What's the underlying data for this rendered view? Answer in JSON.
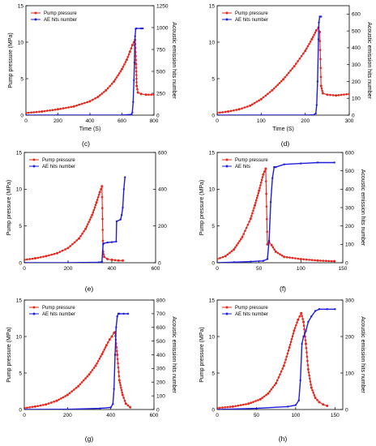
{
  "figure": {
    "colors": {
      "pressure": "#e8261c",
      "ae": "#1d1ddd",
      "axis": "#000000"
    }
  },
  "chart_data": [
    {
      "type": "line",
      "panel_label": "(c)",
      "xlabel": "Time (S)",
      "ylabel_left": "Pump pressure (MPa)",
      "ylabel_right": "Acoustic emission hits number",
      "xlim": [
        0,
        800
      ],
      "ylim_left": [
        0,
        15
      ],
      "ylim_right": [
        0,
        1250
      ],
      "x_ticks": [
        0,
        200,
        400,
        600,
        800
      ],
      "y_ticks_left": [
        0,
        5,
        10,
        15
      ],
      "y_ticks_right": [
        0,
        250,
        500,
        750,
        1000,
        1250
      ],
      "legend": {
        "position": "top-left",
        "entries": [
          "Pump pressure",
          "AE hits number"
        ]
      },
      "series": [
        {
          "name": "Pump pressure",
          "axis": "left",
          "color": "#e8261c",
          "marker": "dot",
          "x": [
            0,
            100,
            200,
            300,
            400,
            450,
            500,
            550,
            600,
            630,
            650,
            665,
            675,
            682,
            688,
            692,
            700,
            720,
            750,
            800
          ],
          "y": [
            0.3,
            0.5,
            0.8,
            1.2,
            1.9,
            2.5,
            3.4,
            4.6,
            6.3,
            7.6,
            8.7,
            9.6,
            10.0,
            10.3,
            7.0,
            4.0,
            3.1,
            2.9,
            2.8,
            2.8
          ]
        },
        {
          "name": "AE hits number",
          "axis": "right",
          "color": "#1d1ddd",
          "marker": "dot",
          "x": [
            0,
            200,
            400,
            600,
            660,
            665,
            670,
            675,
            678,
            680,
            682,
            686,
            690,
            720,
            730
          ],
          "y": [
            0,
            0,
            0,
            0,
            8,
            30,
            150,
            400,
            600,
            800,
            900,
            985,
            990,
            990,
            990
          ]
        }
      ]
    },
    {
      "type": "line",
      "panel_label": "(d)",
      "xlabel": "Time (S)",
      "ylabel_left": "",
      "ylabel_right": "Acoustic emission hits number",
      "xlim": [
        0,
        300
      ],
      "ylim_left": [
        0,
        15
      ],
      "ylim_right": [
        0,
        650
      ],
      "x_ticks": [
        0,
        100,
        200,
        300
      ],
      "y_ticks_left": [
        0,
        5,
        10,
        15
      ],
      "y_ticks_right": [
        0,
        100,
        200,
        300,
        400,
        500,
        600
      ],
      "legend": {
        "position": "top-left",
        "entries": [
          "Pump pressure",
          "AE hits number"
        ]
      },
      "series": [
        {
          "name": "Pump pressure",
          "axis": "left",
          "color": "#e8261c",
          "marker": "dot",
          "x": [
            0,
            25,
            50,
            75,
            100,
            125,
            150,
            175,
            200,
            215,
            225,
            230,
            233,
            236,
            240,
            250,
            270,
            300
          ],
          "y": [
            0.3,
            0.5,
            0.8,
            1.3,
            2.2,
            3.4,
            4.9,
            6.7,
            8.8,
            10.4,
            11.6,
            12.0,
            11.4,
            4.0,
            3.0,
            2.8,
            2.7,
            2.9
          ]
        },
        {
          "name": "AE hits number",
          "axis": "right",
          "color": "#1d1ddd",
          "marker": "dot",
          "x": [
            0,
            100,
            200,
            220,
            224,
            226,
            228,
            230,
            231,
            233,
            236
          ],
          "y": [
            0,
            0,
            0,
            2,
            10,
            60,
            200,
            450,
            550,
            585,
            585
          ]
        }
      ]
    },
    {
      "type": "line",
      "panel_label": "(e)",
      "xlabel": "",
      "ylabel_left": "Pump pressure (MPa)",
      "ylabel_right": "",
      "xlim": [
        0,
        600
      ],
      "ylim_left": [
        0,
        15
      ],
      "ylim_right": [
        0,
        600
      ],
      "x_ticks": [
        0,
        200,
        400,
        600
      ],
      "y_ticks_left": [
        0,
        5,
        10,
        15
      ],
      "y_ticks_right": [
        0,
        200,
        400,
        600
      ],
      "legend": {
        "position": "top-left",
        "entries": [
          "Pump pressure",
          "AE hits number"
        ]
      },
      "series": [
        {
          "name": "Pump pressure",
          "axis": "left",
          "color": "#e8261c",
          "marker": "dot",
          "x": [
            0,
            50,
            100,
            150,
            200,
            250,
            280,
            310,
            330,
            345,
            355,
            360,
            365,
            380,
            400,
            430,
            450
          ],
          "y": [
            0.4,
            0.6,
            0.9,
            1.3,
            2.0,
            3.3,
            4.6,
            6.5,
            8.2,
            9.6,
            10.4,
            1.5,
            0.8,
            0.5,
            0.4,
            0.3,
            0.3
          ]
        },
        {
          "name": "AE hits number",
          "axis": "right",
          "color": "#1d1ddd",
          "marker": "dot",
          "x": [
            0,
            200,
            340,
            355,
            360,
            362,
            380,
            400,
            420,
            422,
            440,
            445,
            450,
            455,
            460
          ],
          "y": [
            0,
            0,
            2,
            5,
            100,
            105,
            110,
            112,
            115,
            225,
            235,
            260,
            300,
            400,
            465
          ]
        }
      ]
    },
    {
      "type": "line",
      "panel_label": "(f)",
      "xlabel": "",
      "ylabel_left": "Pump pressure (MPa)",
      "ylabel_right": "Acoustic emission hits number",
      "xlim": [
        0,
        150
      ],
      "ylim_left": [
        0,
        15
      ],
      "ylim_right": [
        0,
        600
      ],
      "x_ticks": [
        0,
        50,
        100,
        150
      ],
      "y_ticks_left": [
        0,
        5,
        10,
        15
      ],
      "y_ticks_right": [
        0,
        100,
        200,
        300,
        400,
        500,
        600
      ],
      "legend": {
        "position": "top-left",
        "entries": [
          "Pump pressure",
          "AE hits"
        ]
      },
      "series": [
        {
          "name": "Pump pressure",
          "axis": "left",
          "color": "#e8261c",
          "marker": "dot",
          "x": [
            0,
            10,
            20,
            30,
            40,
            45,
            50,
            55,
            58,
            60,
            62,
            65,
            70,
            80,
            100,
            120,
            140
          ],
          "y": [
            0.5,
            0.9,
            1.8,
            3.5,
            6.0,
            7.8,
            9.8,
            12.0,
            12.8,
            2.5,
            2.8,
            2.4,
            1.5,
            0.8,
            0.5,
            0.3,
            0.2
          ]
        },
        {
          "name": "AE hits",
          "axis": "right",
          "color": "#1d1ddd",
          "marker": "dot",
          "x": [
            0,
            20,
            40,
            55,
            60,
            62,
            64,
            66,
            68,
            70,
            80,
            100,
            120,
            140
          ],
          "y": [
            0,
            3,
            6,
            10,
            20,
            120,
            330,
            460,
            520,
            520,
            535,
            540,
            545,
            545
          ]
        }
      ]
    },
    {
      "type": "line",
      "panel_label": "(g)",
      "xlabel": "",
      "ylabel_left": "Pump pressure (MPa)",
      "ylabel_right": "Acoustic emission hits number",
      "xlim": [
        0,
        600
      ],
      "ylim_left": [
        0,
        15
      ],
      "ylim_right": [
        0,
        800
      ],
      "x_ticks": [
        0,
        200,
        400,
        600
      ],
      "y_ticks_left": [
        0,
        5,
        10,
        15
      ],
      "y_ticks_right": [
        0,
        100,
        200,
        300,
        400,
        500,
        600,
        700,
        800
      ],
      "legend": {
        "position": "top-left",
        "entries": [
          "Pump pressure",
          "AE hits number"
        ]
      },
      "series": [
        {
          "name": "Pump pressure",
          "axis": "left",
          "color": "#e8261c",
          "marker": "dot",
          "x": [
            0,
            50,
            100,
            150,
            200,
            250,
            300,
            330,
            360,
            380,
            395,
            405,
            415,
            420,
            430,
            440,
            455,
            470,
            490
          ],
          "y": [
            0.2,
            0.4,
            0.7,
            1.2,
            2.0,
            3.2,
            4.8,
            6.0,
            7.6,
            8.8,
            9.6,
            10.0,
            10.5,
            10.6,
            7.5,
            4.0,
            2.0,
            0.8,
            0.3
          ]
        },
        {
          "name": "AE hits number",
          "axis": "right",
          "color": "#1d1ddd",
          "marker": "dot",
          "x": [
            0,
            200,
            350,
            400,
            410,
            415,
            420,
            425,
            430,
            435,
            440,
            460,
            480
          ],
          "y": [
            0,
            2,
            8,
            15,
            40,
            150,
            400,
            600,
            680,
            700,
            700,
            700,
            700
          ]
        }
      ]
    },
    {
      "type": "line",
      "panel_label": "(h)",
      "xlabel": "",
      "ylabel_left": "Pump pressure (MPa)",
      "ylabel_right": "Acoustic emission hits number",
      "xlim": [
        0,
        160
      ],
      "ylim_left": [
        0,
        15
      ],
      "ylim_right": [
        0,
        300
      ],
      "x_ticks": [
        0,
        50,
        100,
        150
      ],
      "y_ticks_left": [
        0,
        5,
        10,
        15
      ],
      "y_ticks_right": [
        0,
        100,
        200,
        300
      ],
      "legend": {
        "position": "top-left",
        "entries": [
          "Pump pressure",
          "AE hits number"
        ]
      },
      "series": [
        {
          "name": "Pump pressure",
          "axis": "left",
          "color": "#e8261c",
          "marker": "dot",
          "x": [
            0,
            20,
            40,
            55,
            65,
            75,
            85,
            92,
            98,
            103,
            107,
            110,
            113,
            116,
            120,
            125,
            130,
            135,
            140
          ],
          "y": [
            0.2,
            0.4,
            0.8,
            1.4,
            2.2,
            3.6,
            6.0,
            8.5,
            10.8,
            12.3,
            13.2,
            12.0,
            9.0,
            5.5,
            3.0,
            1.6,
            1.0,
            0.7,
            0.5
          ]
        },
        {
          "name": "AE hits number",
          "axis": "right",
          "color": "#1d1ddd",
          "marker": "dot",
          "x": [
            0,
            50,
            90,
            100,
            104,
            106,
            108,
            110,
            113,
            116,
            120,
            125,
            130,
            140,
            150
          ],
          "y": [
            0,
            3,
            8,
            12,
            25,
            80,
            180,
            200,
            215,
            240,
            255,
            270,
            275,
            275,
            275
          ]
        }
      ]
    }
  ]
}
